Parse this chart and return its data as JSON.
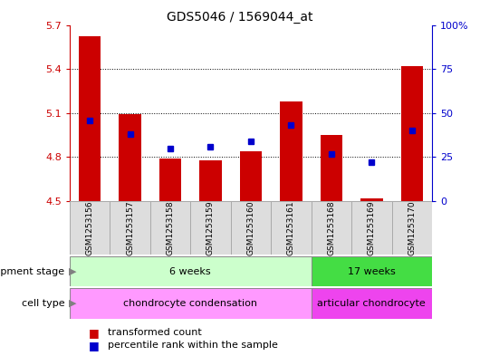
{
  "title": "GDS5046 / 1569044_at",
  "samples": [
    "GSM1253156",
    "GSM1253157",
    "GSM1253158",
    "GSM1253159",
    "GSM1253160",
    "GSM1253161",
    "GSM1253168",
    "GSM1253169",
    "GSM1253170"
  ],
  "bar_values": [
    5.62,
    5.09,
    4.79,
    4.78,
    4.84,
    5.18,
    4.95,
    4.52,
    5.42
  ],
  "percentile_values": [
    46,
    38,
    30,
    31,
    34,
    43,
    27,
    22,
    40
  ],
  "ylim": [
    4.5,
    5.7
  ],
  "yticks": [
    4.5,
    4.8,
    5.1,
    5.4,
    5.7
  ],
  "y2lim": [
    0,
    100
  ],
  "y2ticks": [
    0,
    25,
    50,
    75,
    100
  ],
  "y2ticklabels": [
    "0",
    "25",
    "50",
    "75",
    "100%"
  ],
  "bar_color": "#cc0000",
  "dot_color": "#0000cc",
  "bar_bottom": 4.5,
  "bar_width": 0.55,
  "ytick_color": "#cc0000",
  "y2tick_color": "#0000cc",
  "dev_stage_groups": [
    {
      "label": "6 weeks",
      "start": 0,
      "end": 5,
      "color": "#ccffcc"
    },
    {
      "label": "17 weeks",
      "start": 6,
      "end": 8,
      "color": "#44dd44"
    }
  ],
  "cell_type_groups": [
    {
      "label": "chondrocyte condensation",
      "start": 0,
      "end": 5,
      "color": "#ff99ff"
    },
    {
      "label": "articular chondrocyte",
      "start": 6,
      "end": 8,
      "color": "#ee44ee"
    }
  ],
  "dev_stage_label": "development stage",
  "cell_type_label": "cell type",
  "legend_items": [
    {
      "color": "#cc0000",
      "label": "transformed count"
    },
    {
      "color": "#0000cc",
      "label": "percentile rank within the sample"
    }
  ],
  "sample_box_color": "#dddddd",
  "sample_box_edge": "#aaaaaa"
}
